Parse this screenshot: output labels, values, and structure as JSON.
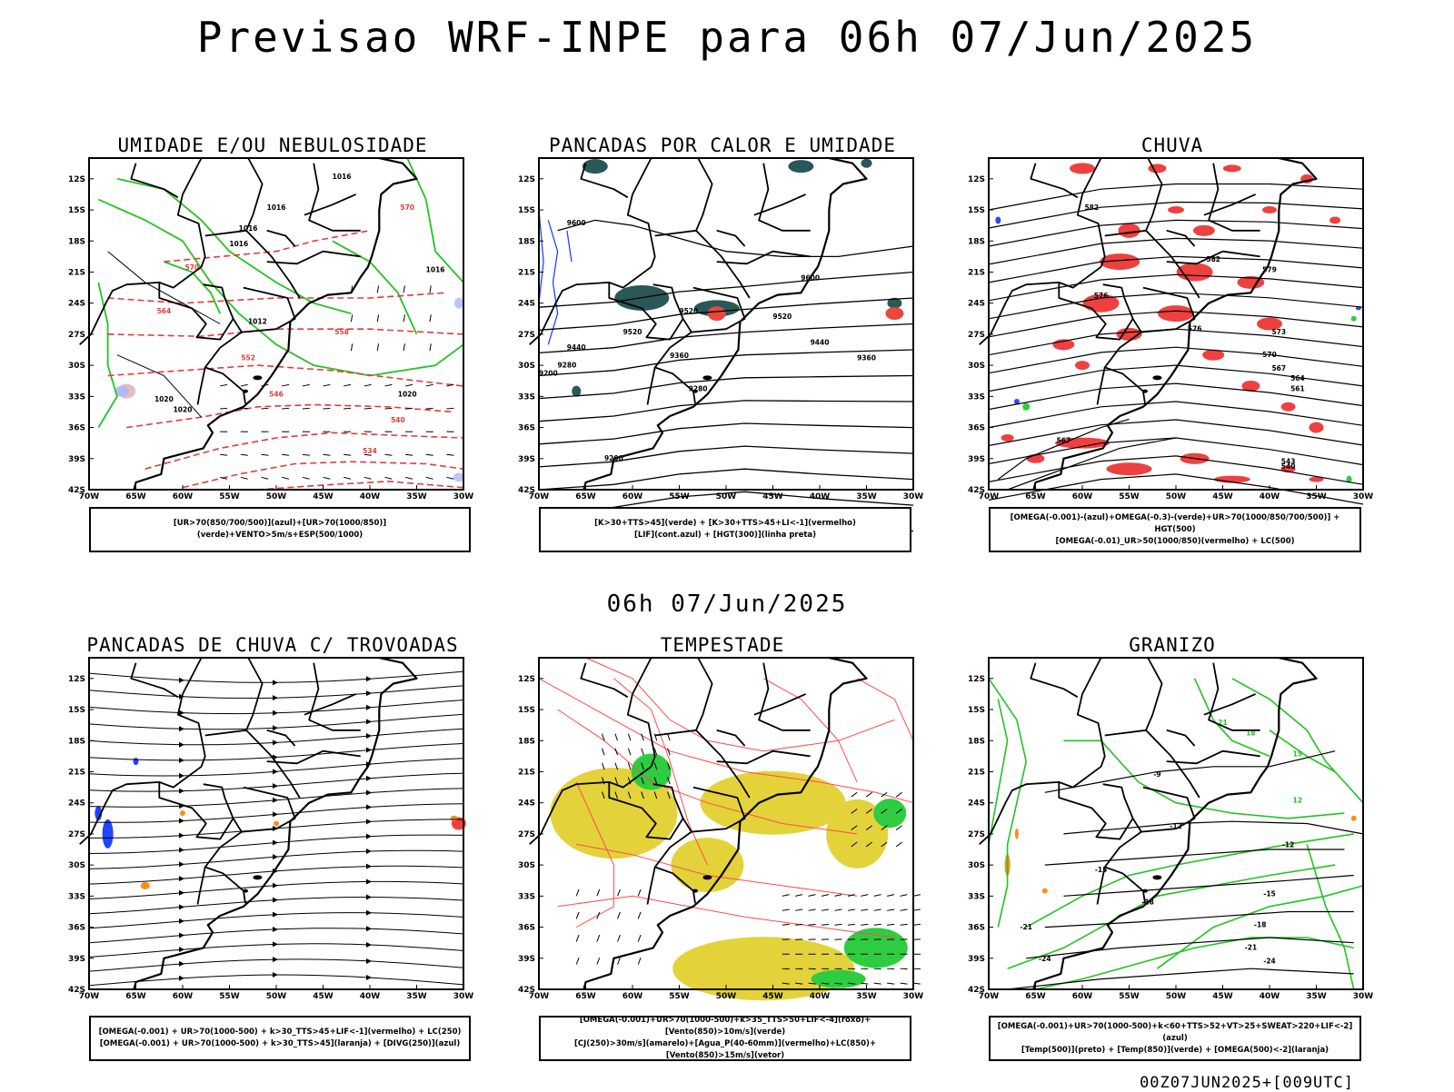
{
  "title": "Previsao WRF-INPE  para 06h 07/Jun/2025",
  "mid_title": "06h 07/Jun/2025",
  "footer": "00Z07JUN2025+[009UTC]",
  "axes": {
    "lat_labels": [
      "12S",
      "15S",
      "18S",
      "21S",
      "24S",
      "27S",
      "30S",
      "33S",
      "36S",
      "39S",
      "42S"
    ],
    "lon_labels": [
      "70W",
      "65W",
      "60W",
      "55W",
      "50W",
      "45W",
      "40W",
      "35W",
      "30W"
    ]
  },
  "panels": [
    {
      "id": "umidade",
      "title": "UMIDADE E/OU NEBULOSIDADE",
      "legend_lines": [
        "[UR>70(850/700/500)](azul)+[UR>70(1000/850)](verde)+VENTO>5m/s+ESP(500/1000)"
      ],
      "contour_labels": [
        "1016",
        "1016",
        "1016",
        "1016",
        "1016",
        "1012",
        "1020",
        "1020",
        "1020",
        "570",
        "570",
        "564",
        "558",
        "552",
        "546",
        "540",
        "534"
      ]
    },
    {
      "id": "pancadas-calor",
      "title": "PANCADAS POR CALOR E UMIDADE",
      "legend_lines": [
        "[K>30+TTS>45](verde) + [K>30+TTS>45+LI<-1](vermelho)",
        "[LIF](cont.azul) + [HGT(300)](linha preta)"
      ],
      "contour_labels": [
        "9600",
        "9600",
        "9520",
        "9520",
        "9520",
        "9440",
        "9440",
        "9360",
        "9360",
        "9280",
        "9280",
        "9200",
        "9200"
      ]
    },
    {
      "id": "chuva",
      "title": "CHUVA",
      "legend_lines": [
        "[OMEGA(-0.001)-(azul)+OMEGA(-0.3)-(verde)+UR>70(1000/850/700/500)] + HGT(500)",
        "[OMEGA(-0.01)_UR>50(1000/850)(vermelho) + LC(500)"
      ],
      "contour_labels": [
        "582",
        "582",
        "579",
        "576",
        "576",
        "573",
        "570",
        "567",
        "564",
        "561",
        "567",
        "543",
        "540"
      ]
    },
    {
      "id": "trovoadas",
      "title": "PANCADAS DE CHUVA C/ TROVOADAS",
      "legend_lines": [
        "[OMEGA(-0.001) + UR>70(1000-500) + k>30_TTS>45+LIF<-1](vermelho) + LC(250)",
        "[OMEGA(-0.001) + UR>70(1000-500) + k>30_TTS>45](laranja) + [DIVG(250)](azul)"
      ],
      "contour_labels": []
    },
    {
      "id": "tempestade",
      "title": "TEMPESTADE",
      "legend_lines": [
        "[OMEGA(-0.001)+UR>70(1000-500)+k>35_TTS>50+LIF<-4](roxo)+[Vento(850)>10m/s](verde)",
        "[CJ(250)>30m/s](amarelo)+[Agua_P(40-60mm)](vermelho)+LC(850)+[Vento(850)>15m/s](vetor)"
      ],
      "contour_labels": []
    },
    {
      "id": "granizo",
      "title": "GRANIZO",
      "legend_lines": [
        "[OMEGA(-0.001)+UR>70(1000-500)+k<60+TTS>52+VT>25+SWEAT>220+LIF<-2](azul)",
        "[Temp(500)](preto) + [Temp(850)](verde) + [OMEGA(500)<-2](laranja)"
      ],
      "contour_labels": [
        "-9",
        "-12",
        "-12",
        "-15",
        "-15",
        "-18",
        "-18",
        "-21",
        "-21",
        "-24",
        "-24",
        "12",
        "15",
        "18",
        "21"
      ]
    }
  ]
}
